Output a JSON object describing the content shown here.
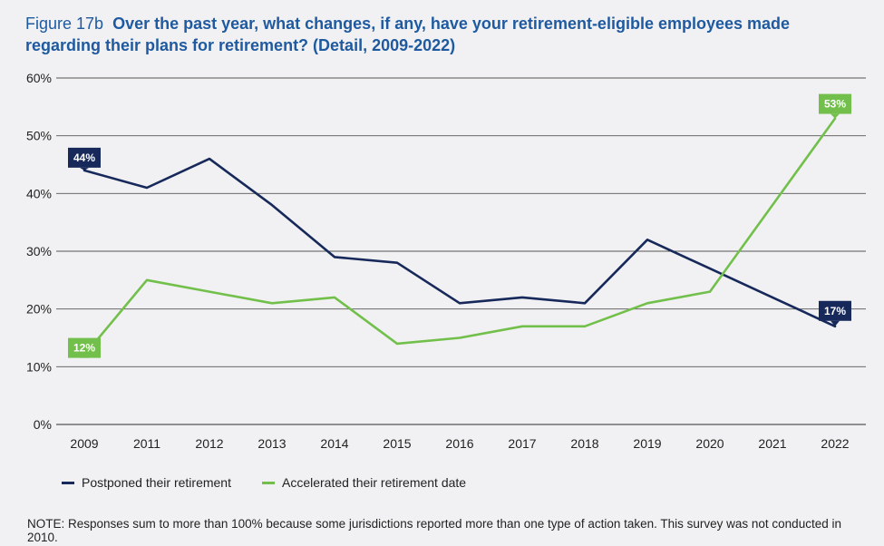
{
  "title": {
    "figure": "Figure 17b",
    "question": "Over the past year, what changes, if any, have your retirement-eligible employees made regarding their plans for retirement?  (Detail, 2009-2022)"
  },
  "note": "NOTE: Responses sum to more than 100% because some jurisdictions reported more than one type of action taken. This survey was not conducted in 2010.",
  "colors": {
    "postponed": "#17295a",
    "accelerated": "#72c04b",
    "grid": "#555555"
  },
  "chart_data": {
    "type": "line",
    "categories": [
      "2009",
      "2011",
      "2012",
      "2013",
      "2014",
      "2015",
      "2016",
      "2017",
      "2018",
      "2019",
      "2020",
      "2021",
      "2022"
    ],
    "ylim": [
      0,
      60
    ],
    "yticks": [
      "0%",
      "10%",
      "20%",
      "30%",
      "40%",
      "50%",
      "60%"
    ],
    "series": [
      {
        "name": "Postponed their retirement",
        "values": [
          44,
          41,
          46,
          38,
          29,
          28,
          21,
          22,
          21,
          32,
          27,
          22,
          17
        ]
      },
      {
        "name": "Accelerated their retirement date",
        "values": [
          12,
          25,
          23,
          21,
          22,
          14,
          15,
          17,
          17,
          21,
          23,
          38,
          53
        ]
      }
    ],
    "data_labels": [
      {
        "series": 0,
        "index": 0,
        "text": "44%"
      },
      {
        "series": 0,
        "index": 12,
        "text": "17%"
      },
      {
        "series": 1,
        "index": 0,
        "text": "12%"
      },
      {
        "series": 1,
        "index": 12,
        "text": "53%"
      }
    ],
    "grid": true,
    "legend_position": "bottom-left"
  }
}
